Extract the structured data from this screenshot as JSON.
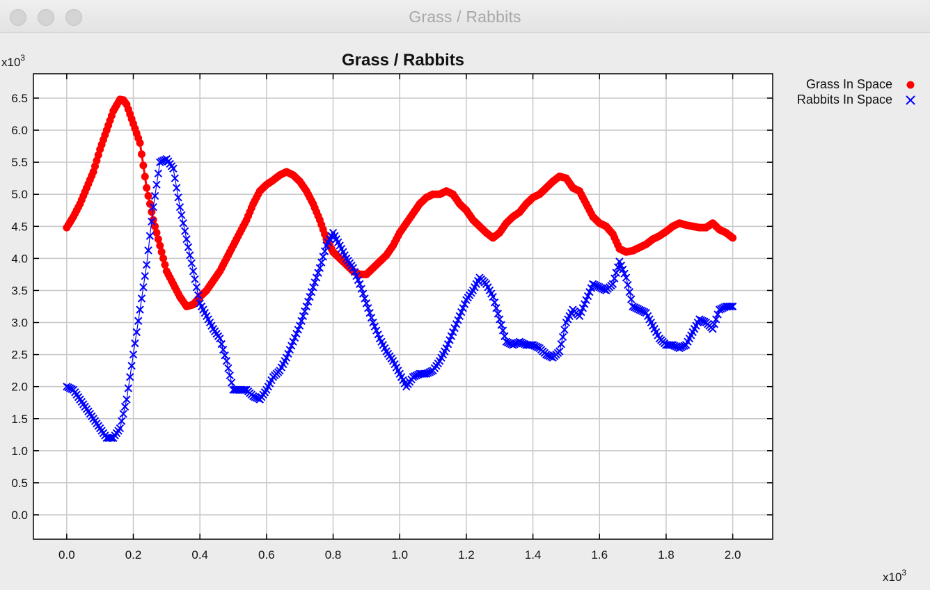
{
  "window": {
    "title": "Grass / Rabbits"
  },
  "chart_data": {
    "type": "scatter",
    "title": "Grass / Rabbits",
    "xlabel": "",
    "ylabel": "",
    "x_multiplier": "x10",
    "x_multiplier_exp": "3",
    "y_multiplier": "x10",
    "y_multiplier_exp": "3",
    "xlim": [
      -0.1,
      2.12
    ],
    "ylim": [
      -0.38,
      6.88
    ],
    "xticks": [
      "0.0",
      "0.2",
      "0.4",
      "0.6",
      "0.8",
      "1.0",
      "1.2",
      "1.4",
      "1.6",
      "1.8",
      "2.0"
    ],
    "yticks": [
      "0.0",
      "0.5",
      "1.0",
      "1.5",
      "2.0",
      "2.5",
      "3.0",
      "3.5",
      "4.0",
      "4.5",
      "5.0",
      "5.5",
      "6.0",
      "6.5"
    ],
    "grid": true,
    "legend_position": "top-right outside",
    "series": [
      {
        "name": "Grass In Space",
        "color": "#ff0000",
        "marker": "circle",
        "x": [
          0.0,
          0.02,
          0.04,
          0.06,
          0.08,
          0.1,
          0.12,
          0.14,
          0.16,
          0.17,
          0.18,
          0.2,
          0.22,
          0.24,
          0.26,
          0.28,
          0.3,
          0.32,
          0.34,
          0.36,
          0.38,
          0.4,
          0.42,
          0.44,
          0.46,
          0.48,
          0.5,
          0.52,
          0.54,
          0.56,
          0.58,
          0.6,
          0.62,
          0.64,
          0.66,
          0.68,
          0.7,
          0.72,
          0.74,
          0.76,
          0.78,
          0.8,
          0.82,
          0.84,
          0.86,
          0.88,
          0.9,
          0.92,
          0.94,
          0.96,
          0.98,
          1.0,
          1.02,
          1.04,
          1.06,
          1.08,
          1.1,
          1.12,
          1.14,
          1.16,
          1.18,
          1.2,
          1.22,
          1.24,
          1.26,
          1.28,
          1.3,
          1.32,
          1.34,
          1.36,
          1.38,
          1.4,
          1.42,
          1.44,
          1.46,
          1.48,
          1.5,
          1.52,
          1.54,
          1.56,
          1.58,
          1.6,
          1.62,
          1.64,
          1.66,
          1.68,
          1.7,
          1.72,
          1.74,
          1.76,
          1.78,
          1.8,
          1.82,
          1.84,
          1.86,
          1.88,
          1.9,
          1.92,
          1.94,
          1.96,
          1.98,
          2.0
        ],
        "y": [
          4.48,
          4.65,
          4.85,
          5.1,
          5.35,
          5.7,
          6.0,
          6.3,
          6.48,
          6.47,
          6.4,
          6.1,
          5.8,
          5.1,
          4.6,
          4.2,
          3.8,
          3.6,
          3.4,
          3.25,
          3.28,
          3.4,
          3.5,
          3.65,
          3.8,
          4.0,
          4.2,
          4.4,
          4.6,
          4.85,
          5.05,
          5.15,
          5.22,
          5.3,
          5.35,
          5.3,
          5.2,
          5.05,
          4.85,
          4.6,
          4.3,
          4.1,
          4.0,
          3.9,
          3.8,
          3.75,
          3.75,
          3.85,
          3.95,
          4.05,
          4.2,
          4.4,
          4.55,
          4.7,
          4.85,
          4.95,
          5.0,
          5.0,
          5.05,
          5.0,
          4.85,
          4.75,
          4.6,
          4.5,
          4.4,
          4.32,
          4.4,
          4.55,
          4.65,
          4.72,
          4.85,
          4.95,
          5.0,
          5.1,
          5.2,
          5.28,
          5.25,
          5.1,
          5.05,
          4.85,
          4.65,
          4.55,
          4.5,
          4.38,
          4.15,
          4.1,
          4.12,
          4.17,
          4.22,
          4.3,
          4.35,
          4.42,
          4.5,
          4.55,
          4.52,
          4.5,
          4.48,
          4.48,
          4.55,
          4.45,
          4.4,
          4.32
        ]
      },
      {
        "name": "Rabbits In Space",
        "color": "#0000ff",
        "marker": "x",
        "x": [
          0.0,
          0.02,
          0.04,
          0.06,
          0.08,
          0.1,
          0.12,
          0.14,
          0.16,
          0.18,
          0.2,
          0.22,
          0.24,
          0.26,
          0.28,
          0.3,
          0.32,
          0.34,
          0.36,
          0.38,
          0.4,
          0.42,
          0.44,
          0.46,
          0.48,
          0.5,
          0.52,
          0.54,
          0.56,
          0.58,
          0.6,
          0.62,
          0.64,
          0.66,
          0.68,
          0.7,
          0.72,
          0.74,
          0.76,
          0.78,
          0.8,
          0.82,
          0.84,
          0.86,
          0.88,
          0.9,
          0.92,
          0.94,
          0.96,
          0.98,
          1.0,
          1.02,
          1.04,
          1.06,
          1.08,
          1.1,
          1.12,
          1.14,
          1.16,
          1.18,
          1.2,
          1.22,
          1.24,
          1.26,
          1.28,
          1.3,
          1.32,
          1.34,
          1.36,
          1.38,
          1.4,
          1.42,
          1.44,
          1.46,
          1.48,
          1.5,
          1.52,
          1.54,
          1.56,
          1.58,
          1.6,
          1.62,
          1.64,
          1.66,
          1.68,
          1.7,
          1.72,
          1.74,
          1.76,
          1.78,
          1.8,
          1.82,
          1.84,
          1.86,
          1.88,
          1.9,
          1.92,
          1.94,
          1.96,
          1.98,
          2.0
        ],
        "y": [
          2.0,
          1.95,
          1.8,
          1.65,
          1.5,
          1.35,
          1.2,
          1.2,
          1.35,
          1.8,
          2.5,
          3.2,
          3.9,
          4.8,
          5.5,
          5.55,
          5.4,
          4.8,
          4.3,
          3.8,
          3.3,
          3.1,
          2.9,
          2.75,
          2.4,
          1.95,
          1.95,
          1.95,
          1.85,
          1.8,
          1.95,
          2.15,
          2.25,
          2.45,
          2.7,
          2.95,
          3.25,
          3.55,
          3.85,
          4.2,
          4.4,
          4.2,
          4.0,
          3.85,
          3.6,
          3.3,
          3.0,
          2.75,
          2.55,
          2.4,
          2.2,
          2.0,
          2.15,
          2.2,
          2.2,
          2.25,
          2.4,
          2.6,
          2.85,
          3.1,
          3.35,
          3.5,
          3.7,
          3.6,
          3.4,
          3.05,
          2.7,
          2.65,
          2.7,
          2.65,
          2.65,
          2.6,
          2.5,
          2.45,
          2.55,
          3.0,
          3.2,
          3.1,
          3.35,
          3.6,
          3.55,
          3.5,
          3.6,
          3.95,
          3.7,
          3.25,
          3.2,
          3.15,
          2.95,
          2.75,
          2.65,
          2.65,
          2.6,
          2.65,
          2.85,
          3.05,
          3.0,
          2.9,
          3.2,
          3.25,
          3.25
        ]
      }
    ]
  }
}
